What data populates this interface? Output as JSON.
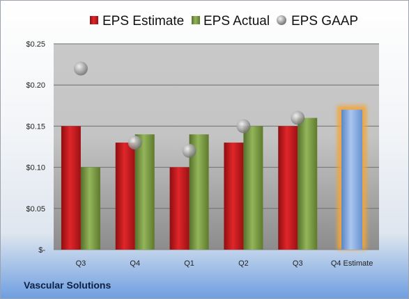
{
  "company": "Vascular Solutions",
  "colors": {
    "estimate": "#c0191c",
    "actual": "#77933c",
    "gaap": "#a6a6a6",
    "forecast": "#7ea6dc",
    "forecast_glow": "#f2a63a"
  },
  "chart_data": {
    "type": "bar",
    "categories": [
      "Q3",
      "Q4",
      "Q1",
      "Q2",
      "Q3",
      "Q4 Estimate"
    ],
    "series": [
      {
        "name": "EPS Estimate",
        "values": [
          0.15,
          0.13,
          0.1,
          0.13,
          0.15,
          null
        ]
      },
      {
        "name": "EPS Actual",
        "values": [
          0.1,
          0.14,
          0.14,
          0.15,
          0.16,
          0.17
        ]
      },
      {
        "name": "EPS GAAP",
        "values": [
          0.22,
          0.13,
          0.12,
          0.15,
          0.16,
          null
        ]
      }
    ],
    "highlight_category": "Q4 Estimate",
    "yticks": [
      {
        "value": 0.25,
        "label": "$0.25"
      },
      {
        "value": 0.2,
        "label": "$0.20"
      },
      {
        "value": 0.15,
        "label": "$0.15"
      },
      {
        "value": 0.1,
        "label": "$0.10"
      },
      {
        "value": 0.05,
        "label": "$0.05"
      },
      {
        "value": 0,
        "label": "$-"
      }
    ],
    "ylim": [
      0,
      0.25
    ],
    "grid": true,
    "legend_position": "top"
  }
}
